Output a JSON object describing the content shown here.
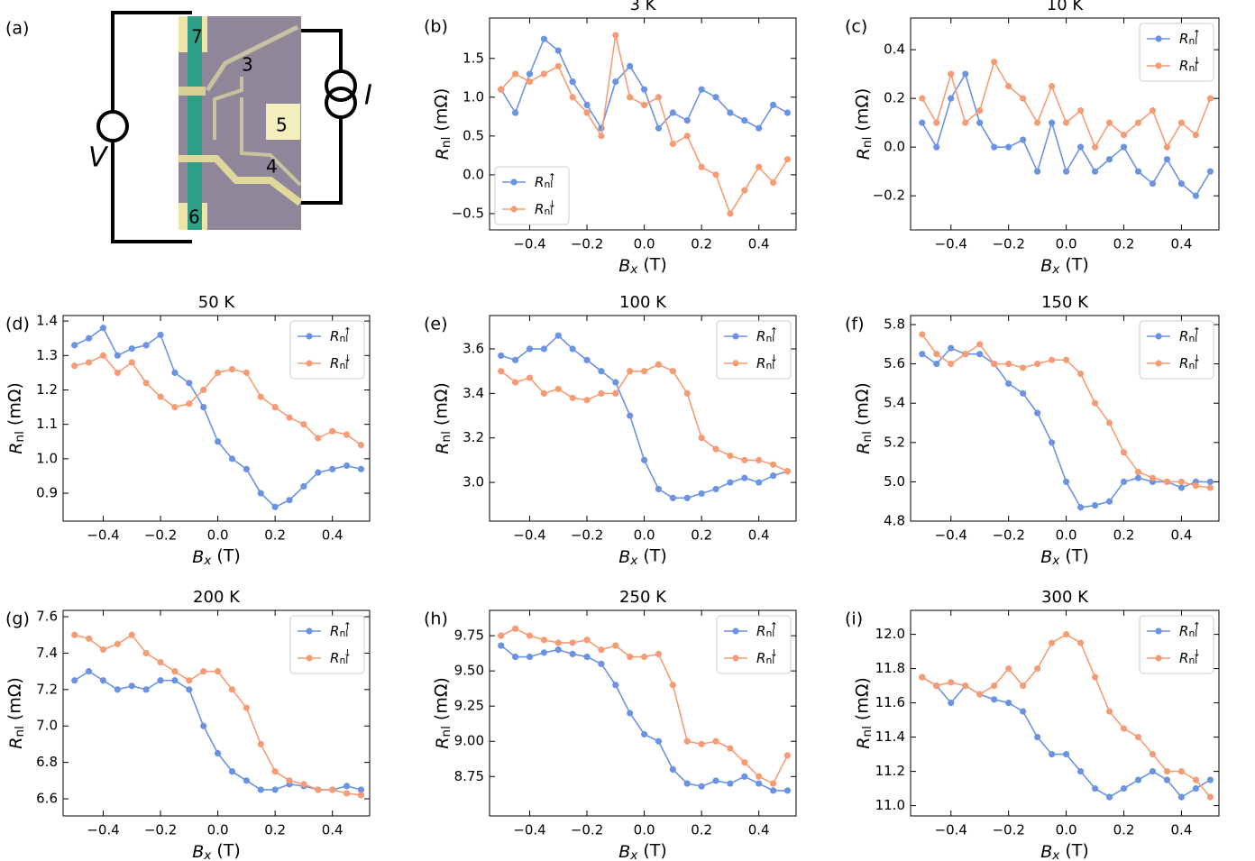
{
  "diagram": {
    "label": "(a)",
    "pads": [
      "7",
      "3",
      "5",
      "4",
      "6"
    ],
    "voltage": "V",
    "current": "I"
  },
  "chart_data": [
    {
      "type": "line",
      "label": "(b)",
      "title": "3 K",
      "xlabel": "Bx (T)",
      "ylabel": "Rnl (mΩ)",
      "legend": "lower left",
      "x": [
        -0.5,
        -0.45,
        -0.4,
        -0.35,
        -0.3,
        -0.25,
        -0.2,
        -0.15,
        -0.1,
        -0.05,
        0,
        0.05,
        0.1,
        0.15,
        0.2,
        0.25,
        0.3,
        0.35,
        0.4,
        0.45,
        0.5
      ],
      "xlim": [
        -0.54,
        0.53
      ],
      "xticks": [
        {
          "value": -0.4,
          "label": "−0.4"
        },
        {
          "value": -0.2,
          "label": "−0.2"
        },
        {
          "value": 0,
          "label": "0.0"
        },
        0.2,
        0.4
      ],
      "ylim": [
        -0.71,
        2.02
      ],
      "yticks": [
        {
          "value": -0.5,
          "label": "−0.5"
        },
        {
          "value": 0,
          "label": "0.0"
        },
        0.5,
        {
          "value": 1,
          "label": "1.0"
        },
        1.5
      ],
      "series": [
        {
          "name": "Rnl↑",
          "color": "#6a93e4",
          "values": [
            1.1,
            0.8,
            1.3,
            1.75,
            1.6,
            1.2,
            0.9,
            0.6,
            1.2,
            1.4,
            1.1,
            0.6,
            0.8,
            0.7,
            1.1,
            1.0,
            0.8,
            0.7,
            0.6,
            0.9,
            0.8
          ]
        },
        {
          "name": "Rnl↓",
          "color": "#f69c75",
          "values": [
            1.1,
            1.3,
            1.2,
            1.3,
            1.4,
            1.0,
            0.8,
            0.5,
            1.8,
            1.0,
            0.9,
            1.0,
            0.4,
            0.5,
            0.1,
            0.0,
            -0.5,
            -0.2,
            0.1,
            -0.1,
            0.2
          ]
        }
      ]
    },
    {
      "type": "line",
      "label": "(c)",
      "title": "10 K",
      "xlabel": "Bx (T)",
      "ylabel": "Rnl (mΩ)",
      "legend": "upper right",
      "x": [
        -0.5,
        -0.45,
        -0.4,
        -0.35,
        -0.3,
        -0.25,
        -0.2,
        -0.15,
        -0.1,
        -0.05,
        0,
        0.05,
        0.1,
        0.15,
        0.2,
        0.25,
        0.3,
        0.35,
        0.4,
        0.45,
        0.5
      ],
      "xlim": [
        -0.54,
        0.53
      ],
      "xticks": [
        {
          "value": -0.4,
          "label": "−0.4"
        },
        {
          "value": -0.2,
          "label": "−0.2"
        },
        {
          "value": 0,
          "label": "0.0"
        },
        0.2,
        0.4
      ],
      "ylim": [
        -0.34,
        0.53
      ],
      "yticks": [
        {
          "value": -0.2,
          "label": "−0.2"
        },
        {
          "value": 0,
          "label": "0.0"
        },
        0.2,
        0.4
      ],
      "series": [
        {
          "name": "Rnl↑",
          "color": "#6a93e4",
          "values": [
            0.1,
            0.0,
            0.2,
            0.3,
            0.1,
            0.0,
            0.0,
            0.03,
            -0.1,
            0.1,
            -0.1,
            0.0,
            -0.1,
            -0.05,
            0.0,
            -0.1,
            -0.15,
            -0.05,
            -0.15,
            -0.2,
            -0.1
          ]
        },
        {
          "name": "Rnl↓",
          "color": "#f69c75",
          "values": [
            0.2,
            0.1,
            0.3,
            0.1,
            0.15,
            0.35,
            0.25,
            0.2,
            0.1,
            0.25,
            0.1,
            0.15,
            0.0,
            0.1,
            0.05,
            0.1,
            0.15,
            0.0,
            0.1,
            0.05,
            0.2
          ]
        }
      ]
    },
    {
      "type": "line",
      "label": "(d)",
      "title": "50 K",
      "xlabel": "Bx (T)",
      "ylabel": "Rnl (mΩ)",
      "legend": "upper right",
      "x": [
        -0.5,
        -0.45,
        -0.4,
        -0.35,
        -0.3,
        -0.25,
        -0.2,
        -0.15,
        -0.1,
        -0.05,
        0,
        0.05,
        0.1,
        0.15,
        0.2,
        0.25,
        0.3,
        0.35,
        0.4,
        0.45,
        0.5
      ],
      "xlim": [
        -0.54,
        0.53
      ],
      "xticks": [
        {
          "value": -0.4,
          "label": "−0.4"
        },
        {
          "value": -0.2,
          "label": "−0.2"
        },
        {
          "value": 0,
          "label": "0.0"
        },
        0.2,
        0.4
      ],
      "ylim": [
        0.819,
        1.416
      ],
      "yticks": [
        0.9,
        {
          "value": 1,
          "label": "1.0"
        },
        1.1,
        1.2,
        1.3,
        1.4
      ],
      "series": [
        {
          "name": "Rnl↑",
          "color": "#6a93e4",
          "values": [
            1.33,
            1.35,
            1.38,
            1.3,
            1.32,
            1.33,
            1.36,
            1.25,
            1.22,
            1.15,
            1.05,
            1.0,
            0.97,
            0.9,
            0.86,
            0.88,
            0.92,
            0.96,
            0.97,
            0.98,
            0.97
          ]
        },
        {
          "name": "Rnl↓",
          "color": "#f69c75",
          "values": [
            1.27,
            1.28,
            1.3,
            1.25,
            1.28,
            1.22,
            1.18,
            1.15,
            1.16,
            1.2,
            1.25,
            1.26,
            1.25,
            1.18,
            1.15,
            1.12,
            1.1,
            1.06,
            1.08,
            1.07,
            1.04
          ]
        }
      ]
    },
    {
      "type": "line",
      "label": "(e)",
      "title": "100 K",
      "xlabel": "Bx (T)",
      "ylabel": "Rnl (mΩ)",
      "legend": "upper right",
      "x": [
        -0.5,
        -0.45,
        -0.4,
        -0.35,
        -0.3,
        -0.25,
        -0.2,
        -0.15,
        -0.1,
        -0.05,
        0,
        0.05,
        0.1,
        0.15,
        0.2,
        0.25,
        0.3,
        0.35,
        0.4,
        0.45,
        0.5
      ],
      "xlim": [
        -0.54,
        0.53
      ],
      "xticks": [
        {
          "value": -0.4,
          "label": "−0.4"
        },
        {
          "value": -0.2,
          "label": "−0.2"
        },
        {
          "value": 0,
          "label": "0.0"
        },
        0.2,
        0.4
      ],
      "ylim": [
        2.826,
        3.75
      ],
      "yticks": [
        {
          "value": 3,
          "label": "3.0"
        },
        3.2,
        3.4,
        3.6
      ],
      "series": [
        {
          "name": "Rnl↑",
          "color": "#6a93e4",
          "values": [
            3.57,
            3.55,
            3.6,
            3.6,
            3.66,
            3.6,
            3.55,
            3.5,
            3.45,
            3.3,
            3.1,
            2.97,
            2.93,
            2.93,
            2.95,
            2.97,
            3.0,
            3.02,
            3.0,
            3.03,
            3.05
          ]
        },
        {
          "name": "Rnl↓",
          "color": "#f69c75",
          "values": [
            3.5,
            3.45,
            3.47,
            3.4,
            3.42,
            3.38,
            3.37,
            3.4,
            3.4,
            3.5,
            3.5,
            3.53,
            3.5,
            3.4,
            3.2,
            3.15,
            3.12,
            3.1,
            3.1,
            3.08,
            3.05
          ]
        }
      ]
    },
    {
      "type": "line",
      "label": "(f)",
      "title": "150 K",
      "xlabel": "Bx (T)",
      "ylabel": "Rnl (mΩ)",
      "legend": "upper right",
      "x": [
        -0.5,
        -0.45,
        -0.4,
        -0.35,
        -0.3,
        -0.25,
        -0.2,
        -0.15,
        -0.1,
        -0.05,
        0,
        0.05,
        0.1,
        0.15,
        0.2,
        0.25,
        0.3,
        0.35,
        0.4,
        0.45,
        0.5
      ],
      "xlim": [
        -0.54,
        0.53
      ],
      "xticks": [
        {
          "value": -0.4,
          "label": "−0.4"
        },
        {
          "value": -0.2,
          "label": "−0.2"
        },
        {
          "value": 0,
          "label": "0.0"
        },
        0.2,
        0.4
      ],
      "ylim": [
        4.8,
        5.846
      ],
      "yticks": [
        4.8,
        {
          "value": 5,
          "label": "5.0"
        },
        5.2,
        5.4,
        5.6,
        5.8
      ],
      "series": [
        {
          "name": "Rnl↑",
          "color": "#6a93e4",
          "values": [
            5.65,
            5.6,
            5.68,
            5.65,
            5.65,
            5.6,
            5.5,
            5.45,
            5.35,
            5.2,
            5.0,
            4.87,
            4.88,
            4.9,
            5.0,
            5.02,
            5.0,
            5.0,
            4.97,
            5.0,
            5.0
          ]
        },
        {
          "name": "Rnl↓",
          "color": "#f69c75",
          "values": [
            5.75,
            5.65,
            5.6,
            5.65,
            5.7,
            5.6,
            5.6,
            5.58,
            5.6,
            5.62,
            5.62,
            5.55,
            5.4,
            5.3,
            5.15,
            5.05,
            5.02,
            5.0,
            5.0,
            4.98,
            4.97
          ]
        }
      ]
    },
    {
      "type": "line",
      "label": "(g)",
      "title": "200 K",
      "xlabel": "Bx (T)",
      "ylabel": "Rnl (mΩ)",
      "legend": "upper right",
      "x": [
        -0.5,
        -0.45,
        -0.4,
        -0.35,
        -0.3,
        -0.25,
        -0.2,
        -0.15,
        -0.1,
        -0.05,
        0,
        0.05,
        0.1,
        0.15,
        0.2,
        0.25,
        0.3,
        0.35,
        0.4,
        0.45,
        0.5
      ],
      "xlim": [
        -0.54,
        0.53
      ],
      "xticks": [
        {
          "value": -0.4,
          "label": "−0.4"
        },
        {
          "value": -0.2,
          "label": "−0.2"
        },
        {
          "value": 0,
          "label": "0.0"
        },
        0.2,
        0.4
      ],
      "ylim": [
        6.506,
        7.635
      ],
      "yticks": [
        6.6,
        6.8,
        {
          "value": 7,
          "label": "7.0"
        },
        7.2,
        7.4,
        7.6
      ],
      "series": [
        {
          "name": "Rnl↑",
          "color": "#6a93e4",
          "values": [
            7.25,
            7.3,
            7.25,
            7.2,
            7.22,
            7.2,
            7.25,
            7.25,
            7.2,
            7.0,
            6.85,
            6.75,
            6.7,
            6.65,
            6.65,
            6.68,
            6.67,
            6.65,
            6.65,
            6.67,
            6.65
          ]
        },
        {
          "name": "Rnl↓",
          "color": "#f69c75",
          "values": [
            7.5,
            7.48,
            7.42,
            7.45,
            7.5,
            7.4,
            7.35,
            7.3,
            7.25,
            7.3,
            7.3,
            7.2,
            7.1,
            6.9,
            6.75,
            6.7,
            6.68,
            6.65,
            6.65,
            6.63,
            6.62
          ]
        }
      ]
    },
    {
      "type": "line",
      "label": "(h)",
      "title": "250 K",
      "xlabel": "Bx (T)",
      "ylabel": "Rnl (mΩ)",
      "legend": "upper right",
      "x": [
        -0.5,
        -0.45,
        -0.4,
        -0.35,
        -0.3,
        -0.25,
        -0.2,
        -0.15,
        -0.1,
        -0.05,
        0,
        0.05,
        0.1,
        0.15,
        0.2,
        0.25,
        0.3,
        0.35,
        0.4,
        0.45,
        0.5
      ],
      "xlim": [
        -0.54,
        0.53
      ],
      "xticks": [
        {
          "value": -0.4,
          "label": "−0.4"
        },
        {
          "value": -0.2,
          "label": "−0.2"
        },
        {
          "value": 0,
          "label": "0.0"
        },
        0.2,
        0.4
      ],
      "ylim": [
        8.47,
        9.93
      ],
      "yticks": [
        8.75,
        {
          "value": 9,
          "label": "9.00"
        },
        9.25,
        {
          "value": 9.5,
          "label": "9.50"
        },
        9.75
      ],
      "series": [
        {
          "name": "Rnl↑",
          "color": "#6a93e4",
          "values": [
            9.68,
            9.6,
            9.6,
            9.63,
            9.65,
            9.62,
            9.6,
            9.55,
            9.4,
            9.2,
            9.05,
            9.0,
            8.8,
            8.7,
            8.68,
            8.72,
            8.7,
            8.75,
            8.7,
            8.65,
            8.65
          ]
        },
        {
          "name": "Rnl↓",
          "color": "#f69c75",
          "values": [
            9.75,
            9.8,
            9.75,
            9.72,
            9.7,
            9.7,
            9.72,
            9.65,
            9.68,
            9.6,
            9.6,
            9.62,
            9.4,
            9.0,
            8.98,
            9.0,
            8.95,
            8.85,
            8.75,
            8.7,
            8.9
          ]
        }
      ]
    },
    {
      "type": "line",
      "label": "(i)",
      "title": "300 K",
      "xlabel": "Bx (T)",
      "ylabel": "Rnl (mΩ)",
      "legend": "upper right",
      "x": [
        -0.5,
        -0.45,
        -0.4,
        -0.35,
        -0.3,
        -0.25,
        -0.2,
        -0.15,
        -0.1,
        -0.05,
        0,
        0.05,
        0.1,
        0.15,
        0.2,
        0.25,
        0.3,
        0.35,
        0.4,
        0.45,
        0.5
      ],
      "xlim": [
        -0.54,
        0.53
      ],
      "xticks": [
        {
          "value": -0.4,
          "label": "−0.4"
        },
        {
          "value": -0.2,
          "label": "−0.2"
        },
        {
          "value": 0,
          "label": "0.0"
        },
        0.2,
        0.4
      ],
      "ylim": [
        10.94,
        12.14
      ],
      "yticks": [
        {
          "value": 11,
          "label": "11.0"
        },
        11.2,
        11.4,
        11.6,
        11.8,
        {
          "value": 12,
          "label": "12.0"
        }
      ],
      "series": [
        {
          "name": "Rnl↑",
          "color": "#6a93e4",
          "values": [
            11.75,
            11.7,
            11.6,
            11.7,
            11.65,
            11.62,
            11.6,
            11.55,
            11.4,
            11.3,
            11.3,
            11.2,
            11.1,
            11.05,
            11.1,
            11.15,
            11.2,
            11.15,
            11.05,
            11.1,
            11.15
          ]
        },
        {
          "name": "Rnl↓",
          "color": "#f69c75",
          "values": [
            11.75,
            11.7,
            11.72,
            11.7,
            11.65,
            11.7,
            11.8,
            11.7,
            11.8,
            11.95,
            12.0,
            11.95,
            11.75,
            11.55,
            11.45,
            11.4,
            11.3,
            11.2,
            11.2,
            11.15,
            11.05
          ]
        }
      ]
    }
  ]
}
